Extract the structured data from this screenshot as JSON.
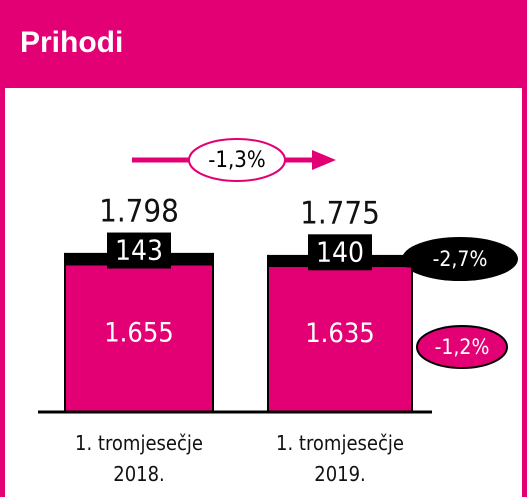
{
  "title": "Prihodi",
  "chart_data": {
    "type": "stacked-bar",
    "categories": [
      "1. tromjesečje 2018.",
      "1. tromjesečje 2019."
    ],
    "series": [
      {
        "color": "#e20074",
        "values": [
          1655,
          1635
        ],
        "value_labels": [
          "1.655",
          "1.635"
        ]
      },
      {
        "color": "#000000",
        "values": [
          143,
          140
        ],
        "value_labels": [
          "143",
          "140"
        ]
      }
    ],
    "totals": {
      "values": [
        1798,
        1775
      ],
      "value_labels": [
        "1.798",
        "1.775"
      ]
    },
    "ylim": [
      0,
      2000
    ],
    "annotations": [
      "-1,3%",
      "-2,7%",
      "-1,2%"
    ]
  }
}
